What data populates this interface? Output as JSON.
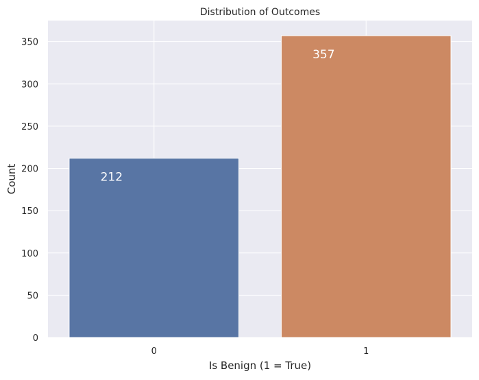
{
  "chart_data": {
    "type": "bar",
    "title": "Distribution of Outcomes",
    "xlabel": "Is Benign (1 = True)",
    "ylabel": "Count",
    "categories": [
      "0",
      "1"
    ],
    "values": [
      212,
      357
    ],
    "data_labels": [
      "212",
      "357"
    ],
    "ylim": [
      0,
      374.85
    ],
    "yticks": [
      0,
      50,
      100,
      150,
      200,
      250,
      300,
      350
    ],
    "grid": true,
    "colors": [
      "#5875a4",
      "#cc8963"
    ],
    "background": "#eaeaf2"
  }
}
